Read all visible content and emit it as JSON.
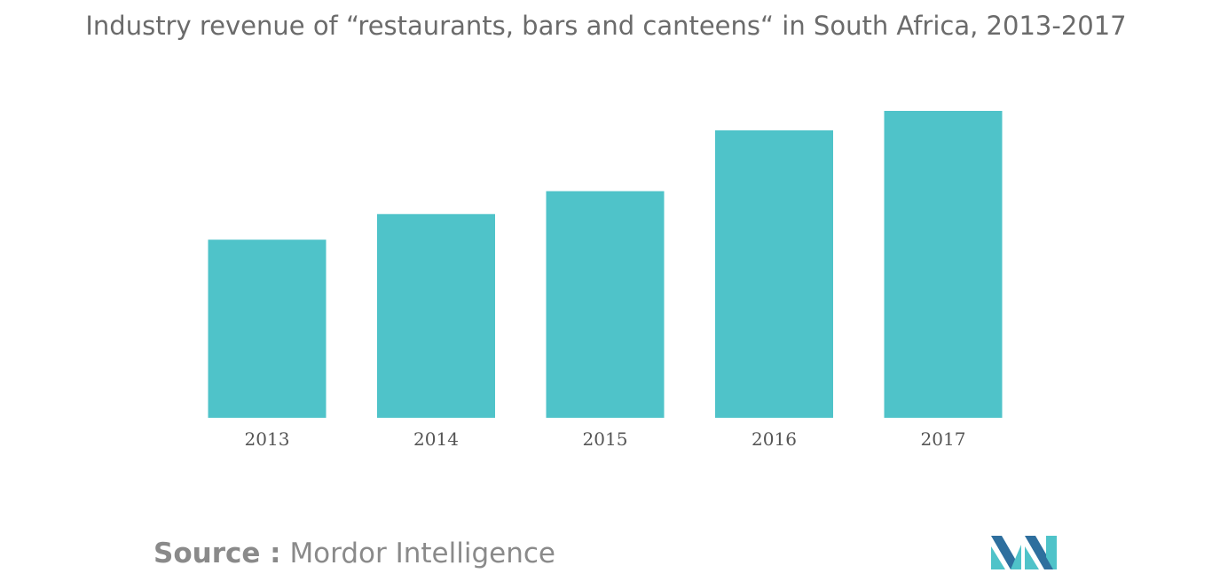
{
  "chart_data": {
    "type": "bar",
    "title": "Industry revenue of “restaurants, bars and canteens“ in South Africa, 2013-2017",
    "categories": [
      "2013",
      "2014",
      "2015",
      "2016",
      "2017"
    ],
    "values": [
      202,
      231,
      257,
      326,
      348
    ],
    "xlabel": "",
    "ylabel": "",
    "ylim": [
      0,
      350
    ],
    "grid": false,
    "legend": "none",
    "bar_color": "#4fc3c9"
  },
  "source": {
    "label": "Source :",
    "name": "Mordor Intelligence"
  },
  "logo": {
    "icon": "mordor-intelligence-logo",
    "colors": [
      "#2e6f9e",
      "#4fc3c9"
    ]
  }
}
